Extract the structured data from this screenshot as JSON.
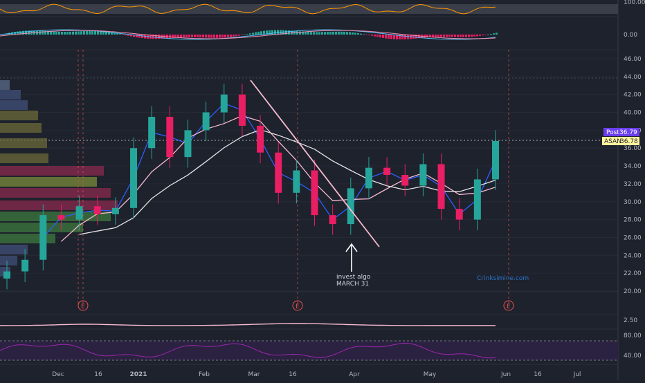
{
  "ticker": "ASAN",
  "post_label": "Post",
  "post_value": "36.79",
  "last_value": "36.78",
  "watermark": "Crinksimine.com",
  "colors": {
    "background": "#1e222d",
    "up": "#26a69a",
    "down": "#e91e63",
    "ma_fast": "#2962ff",
    "ma_white": "#e6e6e6",
    "trendline": "#f8bbd0",
    "earnings": "#ef5350",
    "rsi": "#9c27b0",
    "oscillator": "#ff9800",
    "post_badge": "#6a3df0"
  },
  "chart_data": {
    "type": "candlestick",
    "x_tick_labels": [
      "Dec",
      "16",
      "2021",
      "Feb",
      "Mar",
      "16",
      "Apr",
      "May",
      "Jun",
      "16",
      "Jul"
    ],
    "y_tick_labels": [
      "46.00",
      "44.00",
      "42.00",
      "40.00",
      "38.00",
      "36.00",
      "34.00",
      "32.00",
      "30.00",
      "28.00",
      "26.00",
      "24.00",
      "22.00",
      "20.00"
    ],
    "ylim": [
      20,
      46
    ],
    "top_panel_labels": [
      "100.00",
      "0.00"
    ],
    "bottom_panel_labels": [
      "2.50",
      "80.00",
      "40.00"
    ],
    "earnings_markers": [
      "E",
      "E",
      "E"
    ],
    "annotation": {
      "line1": "invest algo",
      "line2": "MARCH 31"
    },
    "series_close_weekly": [
      {
        "x": "Nov 23",
        "y": 22.2
      },
      {
        "x": "Nov 30",
        "y": 23.5
      },
      {
        "x": "Dec 7",
        "y": 28.5
      },
      {
        "x": "Dec 14",
        "y": 28.0
      },
      {
        "x": "Dec 21",
        "y": 29.5
      },
      {
        "x": "Dec 28",
        "y": 28.6
      },
      {
        "x": "Jan 4",
        "y": 29.3
      },
      {
        "x": "Jan 11",
        "y": 36.0
      },
      {
        "x": "Jan 19",
        "y": 39.5
      },
      {
        "x": "Jan 25",
        "y": 35.0
      },
      {
        "x": "Feb 1",
        "y": 38.0
      },
      {
        "x": "Feb 8",
        "y": 40.0
      },
      {
        "x": "Feb 16",
        "y": 42.0
      },
      {
        "x": "Feb 22",
        "y": 38.5
      },
      {
        "x": "Mar 1",
        "y": 35.5
      },
      {
        "x": "Mar 8",
        "y": 31.0
      },
      {
        "x": "Mar 15",
        "y": 33.5
      },
      {
        "x": "Mar 22",
        "y": 28.5
      },
      {
        "x": "Mar 29",
        "y": 27.5
      },
      {
        "x": "Apr 5",
        "y": 31.5
      },
      {
        "x": "Apr 12",
        "y": 33.8
      },
      {
        "x": "Apr 19",
        "y": 33.0
      },
      {
        "x": "Apr 26",
        "y": 31.8
      },
      {
        "x": "May 3",
        "y": 34.2
      },
      {
        "x": "May 10",
        "y": 29.2
      },
      {
        "x": "May 17",
        "y": 28.0
      },
      {
        "x": "May 24",
        "y": 32.5
      },
      {
        "x": "May 31",
        "y": 36.8
      }
    ]
  }
}
